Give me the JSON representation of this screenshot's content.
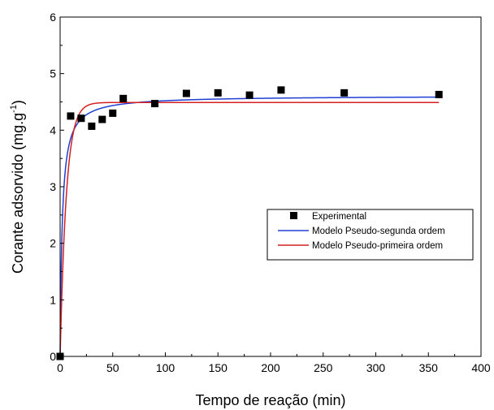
{
  "chart_data": {
    "type": "scatter",
    "title": "",
    "xlabel": "Tempo de reação (min)",
    "ylabel_main": "Corante adsorvido (mg.g",
    "ylabel_sup": "-1",
    "ylabel_close": ")",
    "xlim": [
      0,
      400
    ],
    "ylim": [
      0,
      6
    ],
    "xticks": [
      "0",
      "50",
      "100",
      "150",
      "200",
      "250",
      "300",
      "350",
      "400"
    ],
    "yticks": [
      "0",
      "1",
      "2",
      "3",
      "4",
      "5",
      "6"
    ],
    "grid": false,
    "legend_position": "center-right",
    "series": [
      {
        "name": "Experimental",
        "kind": "markers",
        "color": "#000000",
        "x": [
          0,
          10,
          20,
          30,
          40,
          50,
          60,
          90,
          120,
          150,
          180,
          210,
          270,
          360
        ],
        "y": [
          0.0,
          4.25,
          4.21,
          4.07,
          4.19,
          4.3,
          4.56,
          4.47,
          4.65,
          4.66,
          4.62,
          4.71,
          4.66,
          4.63
        ]
      },
      {
        "name": "Modelo Pseudo-segunda ordem",
        "kind": "line",
        "color": "#1f3fd4",
        "model": "pseudo-second-order",
        "qe": 4.61,
        "k": 0.11
      },
      {
        "name": "Modelo Pseudo-primeira ordem",
        "kind": "line",
        "color": "#d42020",
        "model": "pseudo-first-order",
        "qe": 4.49,
        "k": 0.17
      }
    ]
  }
}
